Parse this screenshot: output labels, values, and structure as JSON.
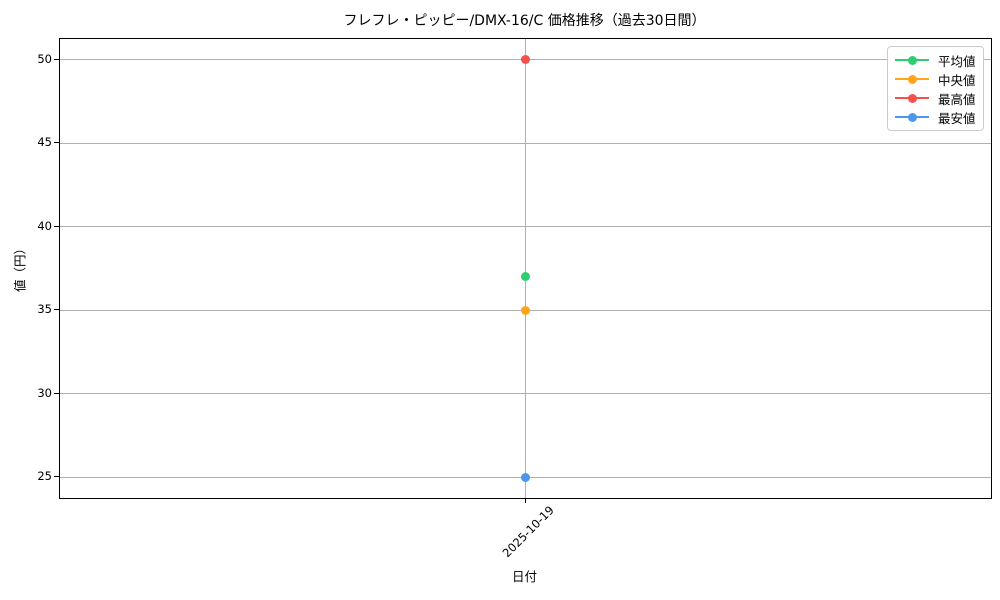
{
  "chart_data": {
    "type": "scatter",
    "title": "フレフレ・ピッピー/DMX-16/C 価格推移（過去30日間）",
    "xlabel": "日付",
    "ylabel": "値（円）",
    "x": [
      "2025-10-19"
    ],
    "series": [
      {
        "id": "average",
        "name": "平均値",
        "color": "#2dce6f",
        "values": [
          37
        ]
      },
      {
        "id": "median",
        "name": "中央値",
        "color": "#ffa41b",
        "values": [
          35
        ]
      },
      {
        "id": "max",
        "name": "最高値",
        "color": "#f4514d",
        "values": [
          50
        ]
      },
      {
        "id": "min",
        "name": "最安値",
        "color": "#4b97ed",
        "values": [
          25
        ]
      }
    ],
    "yticks": [
      25,
      30,
      35,
      40,
      45,
      50
    ],
    "ylim": [
      23.75,
      51.25
    ],
    "grid": true,
    "grid_color": "#b0b0b0",
    "legend_position": "upper right",
    "marker": "circle"
  }
}
